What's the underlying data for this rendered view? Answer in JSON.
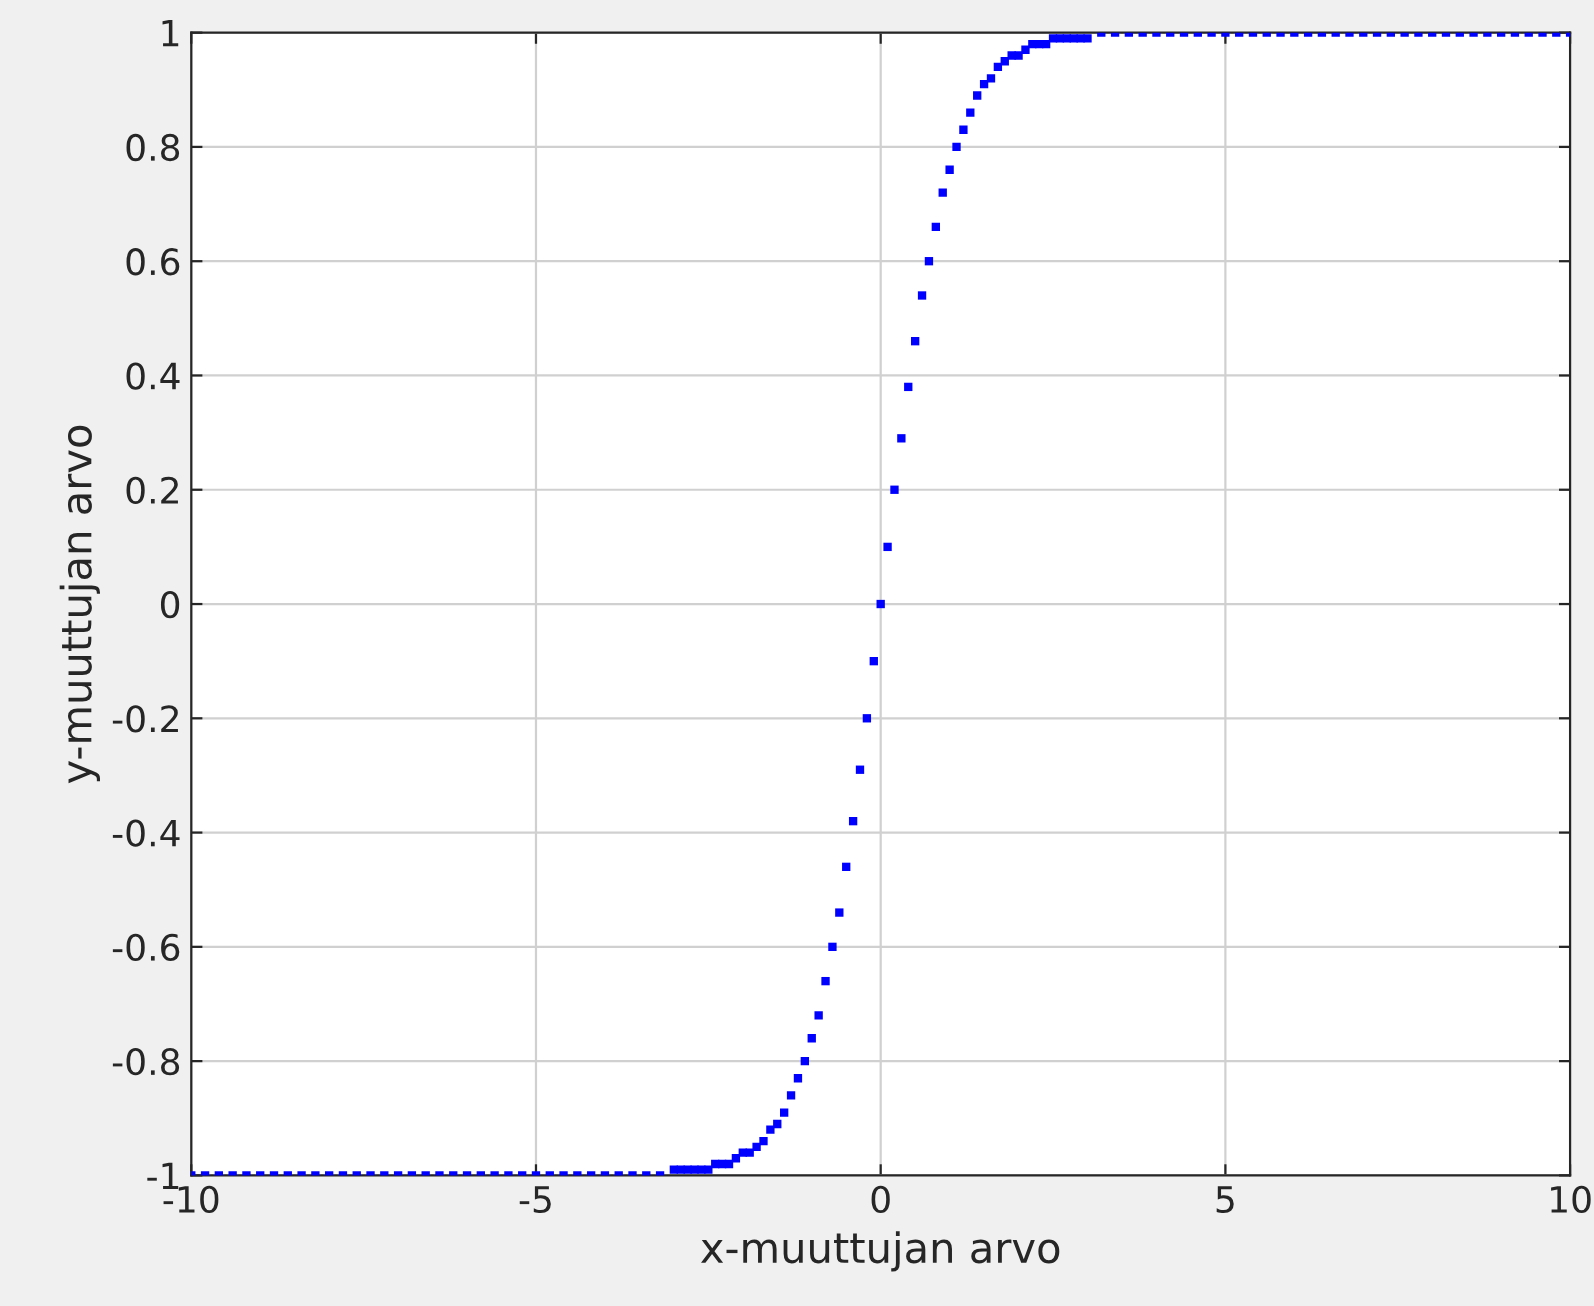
{
  "chart_data": {
    "type": "scatter",
    "xlabel": "x-muuttujan arvo",
    "ylabel": "y-muuttujan arvo",
    "xlim": [
      -10,
      10
    ],
    "xticks": [
      -10,
      -5,
      0,
      5,
      10
    ],
    "ylim": [
      -1,
      1
    ],
    "yticks": [
      -1,
      -0.8,
      -0.6,
      -0.4,
      -0.2,
      0,
      0.2,
      0.4,
      0.6,
      0.8,
      1
    ],
    "grid": true,
    "marker": "square",
    "series": [
      {
        "color": "#0000ff",
        "x": [
          -10,
          -9.8,
          -9.6,
          -9.4,
          -9.2,
          -9,
          -8.8,
          -8.6,
          -8.4,
          -8.2,
          -8,
          -7.8,
          -7.6,
          -7.4,
          -7.2,
          -7,
          -6.8,
          -6.6,
          -6.4,
          -6.2,
          -6,
          -5.8,
          -5.6,
          -5.4,
          -5.2,
          -5,
          -4.8,
          -4.6,
          -4.4,
          -4.2,
          -4,
          -3.8,
          -3.6,
          -3.4,
          -3.2,
          -3,
          -2.9,
          -2.8,
          -2.7,
          -2.6,
          -2.5,
          -2.4,
          -2.3,
          -2.2,
          -2.1,
          -2,
          -1.9,
          -1.8,
          -1.7,
          -1.6,
          -1.5,
          -1.4,
          -1.3,
          -1.2,
          -1.1,
          -1,
          -0.9,
          -0.8,
          -0.7,
          -0.6,
          -0.5,
          -0.4,
          -0.3,
          -0.2,
          -0.1,
          0,
          0.1,
          0.2,
          0.3,
          0.4,
          0.5,
          0.6,
          0.7,
          0.8,
          0.9,
          1,
          1.1,
          1.2,
          1.3,
          1.4,
          1.5,
          1.6,
          1.7,
          1.8,
          1.9,
          2,
          2.1,
          2.2,
          2.3,
          2.4,
          2.5,
          2.6,
          2.7,
          2.8,
          2.9,
          3,
          3.2,
          3.4,
          3.6,
          3.8,
          4,
          4.2,
          4.4,
          4.6,
          4.8,
          5,
          5.2,
          5.4,
          5.6,
          5.8,
          6,
          6.2,
          6.4,
          6.6,
          6.8,
          7,
          7.2,
          7.4,
          7.6,
          7.8,
          8,
          8.2,
          8.4,
          8.6,
          8.8,
          9,
          9.2,
          9.4,
          9.6,
          9.8,
          10
        ],
        "values": [
          -1,
          -1,
          -1,
          -1,
          -1,
          -1,
          -1,
          -1,
          -1,
          -1,
          -1,
          -1,
          -1,
          -1,
          -1,
          -1,
          -1,
          -1,
          -1,
          -1,
          -1,
          -1,
          -1,
          -1,
          -1,
          -1,
          -1,
          -1,
          -1,
          -1,
          -1,
          -1,
          -1,
          -1,
          -1,
          -0.99,
          -0.99,
          -0.99,
          -0.99,
          -0.99,
          -0.99,
          -0.98,
          -0.98,
          -0.98,
          -0.97,
          -0.96,
          -0.96,
          -0.95,
          -0.94,
          -0.92,
          -0.91,
          -0.89,
          -0.86,
          -0.83,
          -0.8,
          -0.76,
          -0.72,
          -0.66,
          -0.6,
          -0.54,
          -0.46,
          -0.38,
          -0.29,
          -0.2,
          -0.1,
          0,
          0.1,
          0.2,
          0.29,
          0.38,
          0.46,
          0.54,
          0.6,
          0.66,
          0.72,
          0.76,
          0.8,
          0.83,
          0.86,
          0.89,
          0.91,
          0.92,
          0.94,
          0.95,
          0.96,
          0.96,
          0.97,
          0.98,
          0.98,
          0.98,
          0.99,
          0.99,
          0.99,
          0.99,
          0.99,
          0.99,
          1,
          1,
          1,
          1,
          1,
          1,
          1,
          1,
          1,
          1,
          1,
          1,
          1,
          1,
          1,
          1,
          1,
          1,
          1,
          1,
          1,
          1,
          1,
          1,
          1,
          1,
          1,
          1,
          1,
          1,
          1,
          1,
          1,
          1,
          1
        ]
      }
    ]
  }
}
